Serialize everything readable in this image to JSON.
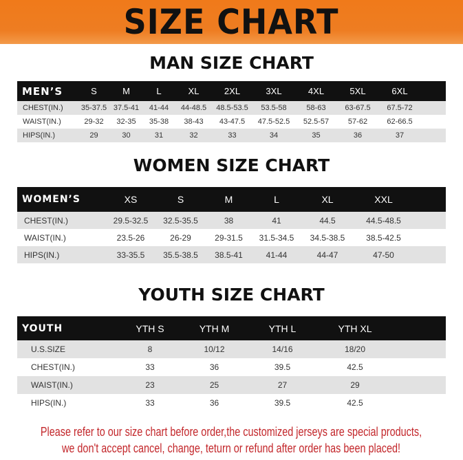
{
  "banner": "SIZE CHART",
  "men": {
    "title": "MAN SIZE CHART",
    "header": "MEN’S",
    "sizes": [
      "S",
      "M",
      "L",
      "XL",
      "2XL",
      "3XL",
      "4XL",
      "5XL",
      "6XL"
    ],
    "rows": [
      {
        "label": "CHEST(IN.)",
        "values": [
          "35-37.5",
          "37.5-41",
          "41-44",
          "44-48.5",
          "48.5-53.5",
          "53.5-58",
          "58-63",
          "63-67.5",
          "67.5-72"
        ]
      },
      {
        "label": "WAIST(IN.)",
        "values": [
          "29-32",
          "32-35",
          "35-38",
          "38-43",
          "43-47.5",
          "47.5-52.5",
          "52.5-57",
          "57-62",
          "62-66.5"
        ]
      },
      {
        "label": "HIPS(IN.)",
        "values": [
          "29",
          "30",
          "31",
          "32",
          "33",
          "34",
          "35",
          "36",
          "37"
        ]
      }
    ]
  },
  "women": {
    "title": "WOMEN SIZE CHART",
    "header": "WOMEN’S",
    "sizes": [
      "XS",
      "S",
      "M",
      "L",
      "XL",
      "XXL"
    ],
    "rows": [
      {
        "label": "CHEST(IN.)",
        "values": [
          "29.5-32.5",
          "32.5-35.5",
          "38",
          "41",
          "44.5",
          "44.5-48.5"
        ]
      },
      {
        "label": "WAIST(IN.)",
        "values": [
          "23.5-26",
          "26-29",
          "29-31.5",
          "31.5-34.5",
          "34.5-38.5",
          "38.5-42.5"
        ]
      },
      {
        "label": "HIPS(IN.)",
        "values": [
          "33-35.5",
          "35.5-38.5",
          "38.5-41",
          "41-44",
          "44-47",
          "47-50"
        ]
      }
    ]
  },
  "youth": {
    "title": "YOUTH SIZE CHART",
    "header": "YOUTH",
    "sizes": [
      "YTH S",
      "YTH M",
      "YTH L",
      "YTH XL"
    ],
    "rows": [
      {
        "label": "U.S.SIZE",
        "values": [
          "8",
          "10/12",
          "14/16",
          "18/20"
        ]
      },
      {
        "label": "CHEST(IN.)",
        "values": [
          "33",
          "36",
          "39.5",
          "42.5"
        ]
      },
      {
        "label": "WAIST(IN.)",
        "values": [
          "23",
          "25",
          "27",
          "29"
        ]
      },
      {
        "label": "HIPS(IN.)",
        "values": [
          "33",
          "36",
          "39.5",
          "42.5"
        ]
      }
    ]
  },
  "notice": [
    "Please refer to our size chart before order,the customized jerseys are special products,",
    "we don't accept cancel, change, teturn or refund after order has been placed!"
  ],
  "colors": {
    "banner": "#ee7d22",
    "header_row": "#111111",
    "stripe": "#e2e2e2",
    "notice": "#c3272b"
  }
}
